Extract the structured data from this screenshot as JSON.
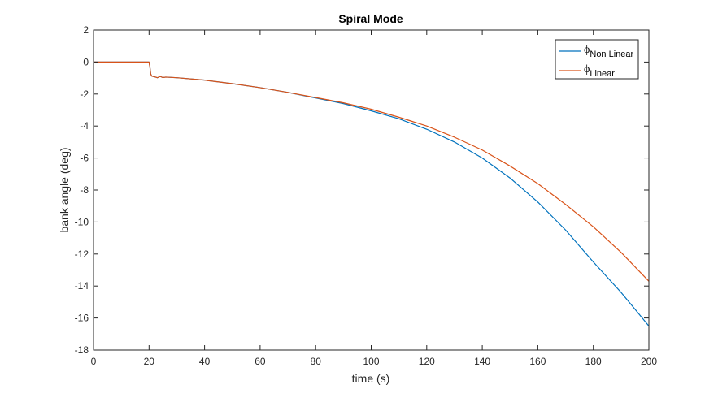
{
  "chart_data": {
    "type": "line",
    "title": "Spiral Mode",
    "xlabel": "time (s)",
    "ylabel": "bank angle (deg)",
    "xlim": [
      0,
      200
    ],
    "ylim": [
      -18,
      2
    ],
    "xticks": [
      0,
      20,
      40,
      60,
      80,
      100,
      120,
      140,
      160,
      180,
      200
    ],
    "yticks": [
      2,
      0,
      -2,
      -4,
      -6,
      -8,
      -10,
      -12,
      -14,
      -16,
      -18
    ],
    "grid": false,
    "legend_position": "top-right",
    "series": [
      {
        "name": "ϕ",
        "name_subscript": "Non Linear",
        "color": "#0072BD",
        "x": [
          0,
          20,
          20.3,
          20.6,
          21,
          22,
          23,
          24,
          25,
          26,
          30,
          40,
          50,
          60,
          70,
          80,
          90,
          100,
          110,
          120,
          130,
          140,
          150,
          160,
          170,
          180,
          190,
          200
        ],
        "y": [
          0,
          0,
          -0.3,
          -0.75,
          -0.88,
          -0.92,
          -0.98,
          -0.9,
          -0.97,
          -0.94,
          -0.98,
          -1.13,
          -1.35,
          -1.6,
          -1.9,
          -2.25,
          -2.6,
          -3.05,
          -3.55,
          -4.2,
          -5.0,
          -6.0,
          -7.25,
          -8.75,
          -10.5,
          -12.5,
          -14.4,
          -16.5
        ]
      },
      {
        "name": "ϕ",
        "name_subscript": "Linear",
        "color": "#D95319",
        "x": [
          0,
          20,
          20.3,
          20.6,
          21,
          22,
          23,
          24,
          25,
          26,
          30,
          40,
          50,
          60,
          70,
          80,
          90,
          100,
          110,
          120,
          130,
          140,
          150,
          160,
          170,
          180,
          190,
          200
        ],
        "y": [
          0,
          0,
          -0.3,
          -0.75,
          -0.88,
          -0.92,
          -0.98,
          -0.9,
          -0.97,
          -0.94,
          -0.98,
          -1.13,
          -1.35,
          -1.6,
          -1.9,
          -2.22,
          -2.55,
          -2.95,
          -3.45,
          -4.0,
          -4.7,
          -5.5,
          -6.5,
          -7.6,
          -8.9,
          -10.3,
          -11.9,
          -13.7
        ]
      }
    ]
  }
}
